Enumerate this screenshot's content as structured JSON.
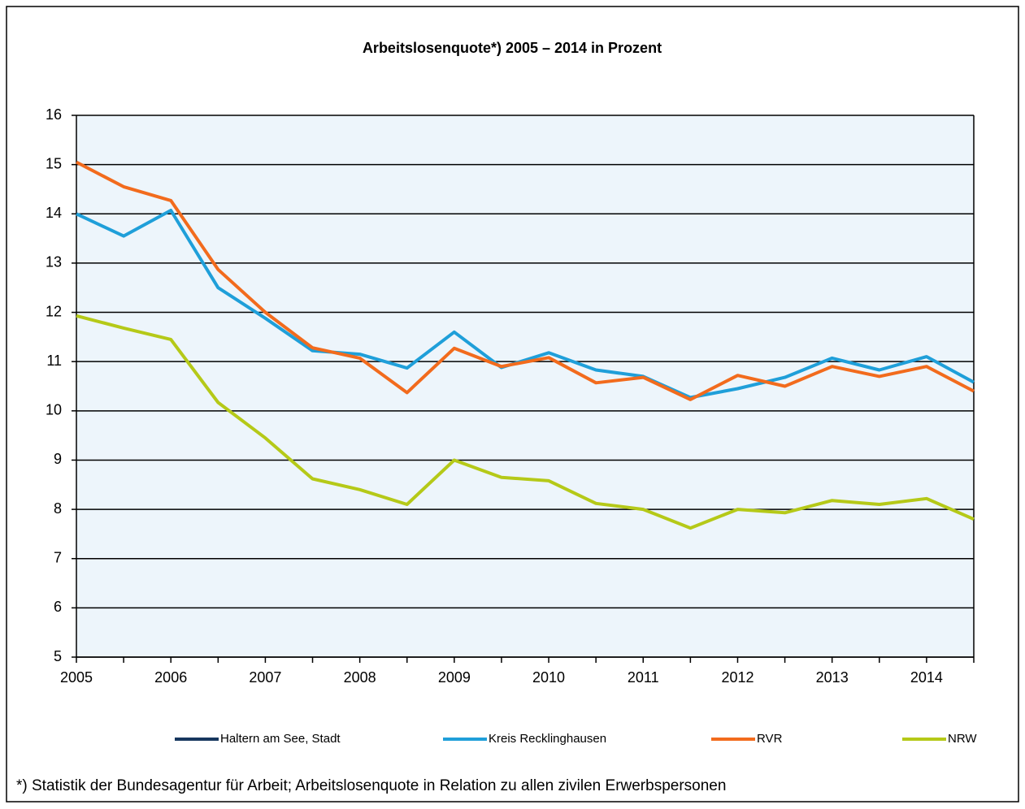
{
  "chart_data": {
    "type": "line",
    "title": "Arbeitslosenquote*) 2005 – 2014 in Prozent",
    "categories": [
      "2005",
      null,
      "2006",
      null,
      "2007",
      null,
      "2008",
      null,
      "2009",
      null,
      "2010",
      null,
      "2011",
      null,
      "2012",
      null,
      "2013",
      null,
      "2014",
      null
    ],
    "series": [
      {
        "name": "Haltern am See, Stadt",
        "color": "#17375e",
        "values": [
          null,
          null,
          null,
          null,
          null,
          null,
          null,
          null,
          null,
          null,
          null,
          null,
          null,
          null,
          null,
          null,
          null,
          null,
          null,
          null
        ]
      },
      {
        "name": "Kreis Recklinghausen",
        "color": "#1f9fd9",
        "values": [
          14.0,
          13.55,
          14.07,
          12.5,
          11.88,
          11.22,
          11.15,
          10.87,
          11.6,
          10.88,
          11.18,
          10.83,
          10.7,
          10.27,
          10.45,
          10.68,
          11.07,
          10.83,
          11.1,
          10.58
        ]
      },
      {
        "name": "RVR",
        "color": "#f26b1d",
        "values": [
          15.05,
          14.55,
          14.27,
          12.87,
          12.0,
          11.28,
          11.07,
          10.37,
          11.27,
          10.9,
          11.08,
          10.57,
          10.68,
          10.23,
          10.72,
          10.5,
          10.9,
          10.7,
          10.9,
          10.4
        ]
      },
      {
        "name": "NRW",
        "color": "#b5c918",
        "values": [
          11.93,
          11.68,
          11.45,
          10.17,
          9.45,
          8.62,
          8.4,
          8.1,
          9.0,
          8.65,
          8.58,
          8.12,
          8.0,
          7.62,
          8.0,
          7.93,
          8.18,
          8.1,
          8.22,
          7.8
        ]
      }
    ],
    "ylim": [
      5,
      16
    ],
    "yticks": [
      5,
      6,
      7,
      8,
      9,
      10,
      11,
      12,
      13,
      14,
      15,
      16
    ],
    "grid": true,
    "legend": "bottom",
    "footnote": "*) Statistik der Bundesagentur für Arbeit; Arbeitslosenquote in Relation zu allen zivilen Erwerbspersonen"
  }
}
